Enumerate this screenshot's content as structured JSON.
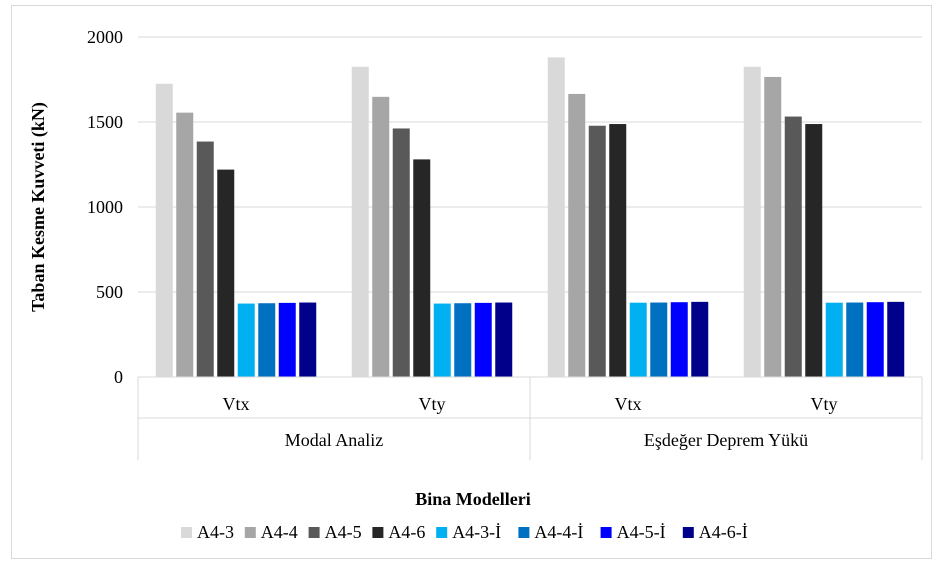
{
  "chart_data": {
    "type": "bar",
    "title": "",
    "xlabel": "Bina Modelleri",
    "ylabel": "Taban Kesme Kuvveti (kN)",
    "ylim": [
      0,
      2000
    ],
    "yticks": [
      0,
      500,
      1000,
      1500,
      2000
    ],
    "grid": true,
    "legend_position": "bottom",
    "groups": [
      "Modal Analiz",
      "Eşdeğer Deprem Yükü"
    ],
    "categories": [
      "Vtx",
      "Vty",
      "Vtx",
      "Vty"
    ],
    "series": [
      {
        "name": "A4-3",
        "color": "#d9d9d9",
        "values": [
          1725,
          1825,
          1880,
          1825
        ]
      },
      {
        "name": "A4-4",
        "color": "#a6a6a6",
        "values": [
          1555,
          1648,
          1665,
          1765
        ]
      },
      {
        "name": "A4-5",
        "color": "#595959",
        "values": [
          1385,
          1462,
          1478,
          1532
        ]
      },
      {
        "name": "A4-6",
        "color": "#262626",
        "values": [
          1220,
          1280,
          1488,
          1488
        ]
      },
      {
        "name": "A4-3-İ",
        "color": "#00b0f0",
        "values": [
          432,
          432,
          437,
          437
        ]
      },
      {
        "name": "A4-4-İ",
        "color": "#0070c0",
        "values": [
          434,
          434,
          438,
          438
        ]
      },
      {
        "name": "A4-5-İ",
        "color": "#0000ff",
        "values": [
          436,
          436,
          440,
          440
        ]
      },
      {
        "name": "A4-6-İ",
        "color": "#00008b",
        "values": [
          438,
          438,
          442,
          442
        ]
      }
    ]
  }
}
